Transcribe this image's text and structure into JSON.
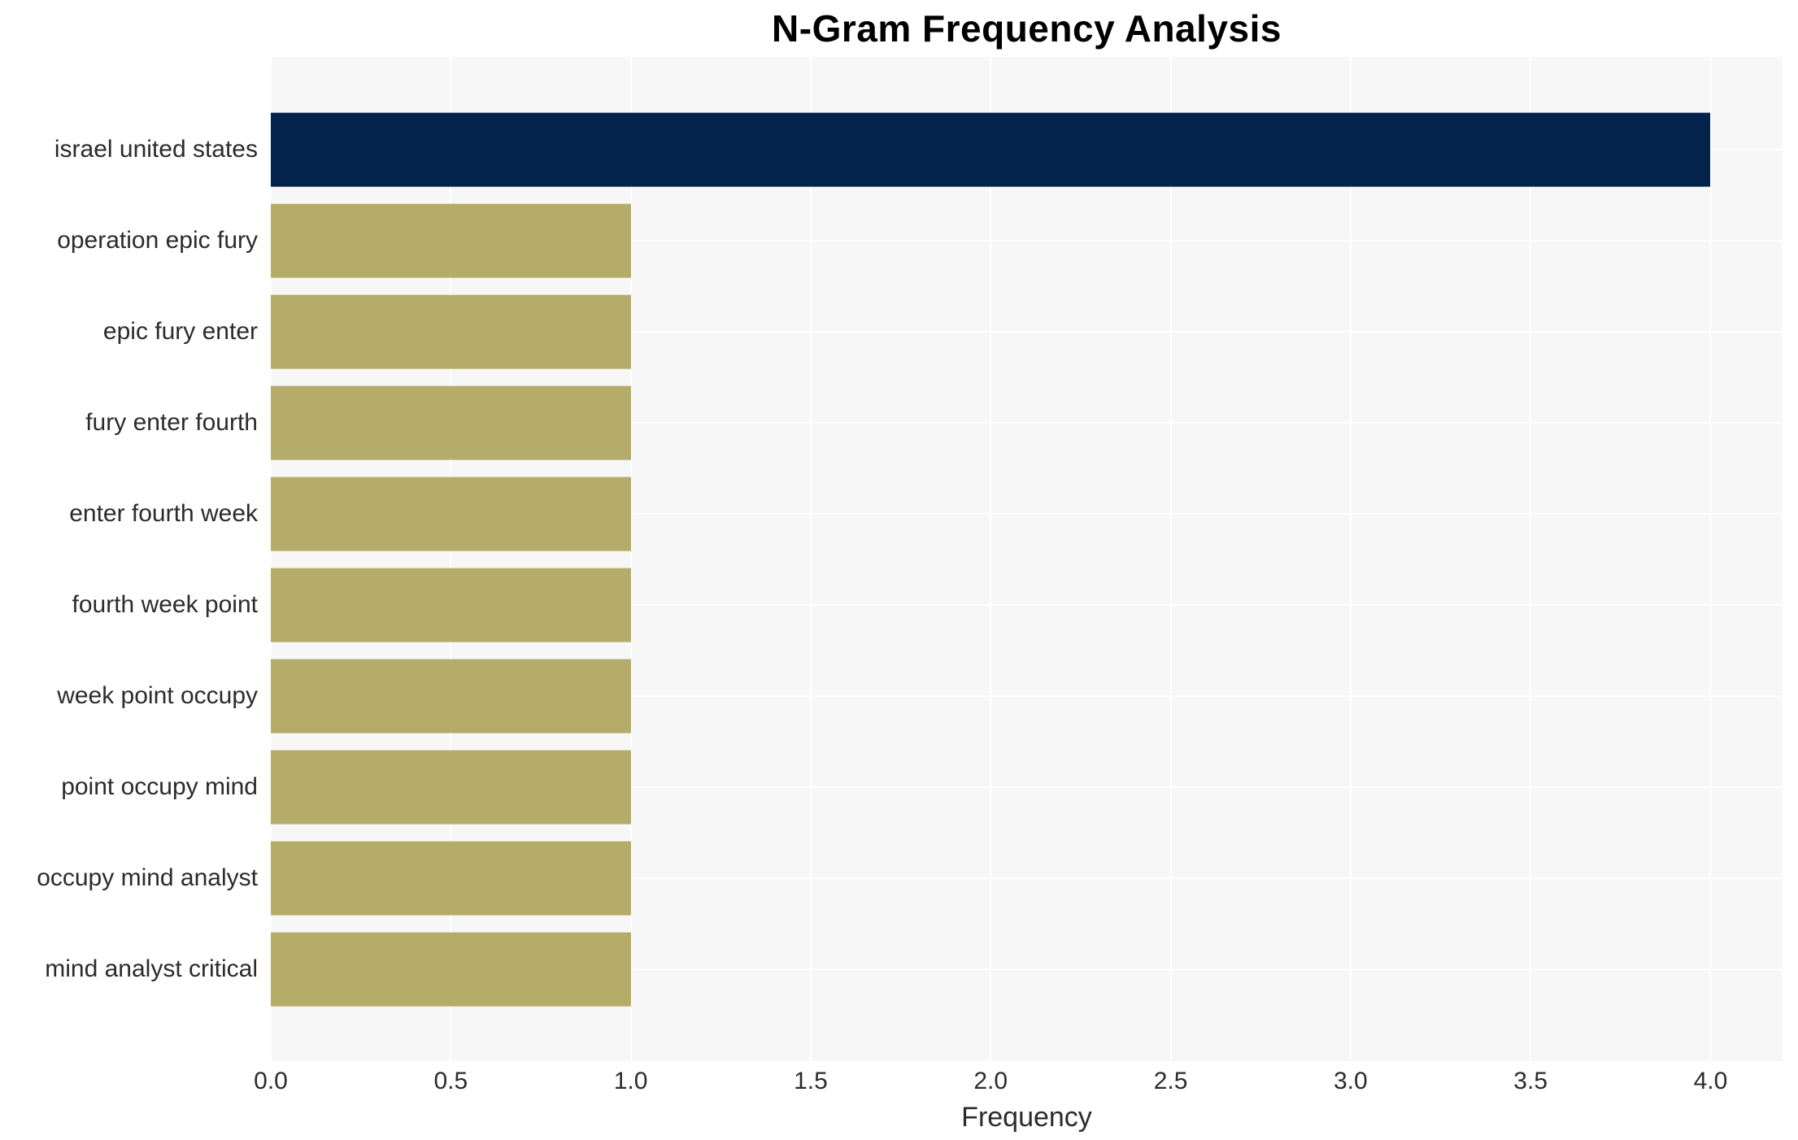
{
  "chart_data": {
    "type": "bar",
    "orientation": "horizontal",
    "title": "N-Gram Frequency Analysis",
    "xlabel": "Frequency",
    "ylabel": "",
    "categories": [
      "israel united states",
      "operation epic fury",
      "epic fury enter",
      "fury enter fourth",
      "enter fourth week",
      "fourth week point",
      "week point occupy",
      "point occupy mind",
      "occupy mind analyst",
      "mind analyst critical"
    ],
    "values": [
      4,
      1,
      1,
      1,
      1,
      1,
      1,
      1,
      1,
      1
    ],
    "bar_colors": [
      "#03234d",
      "#b6ac69",
      "#b6ac69",
      "#b6ac69",
      "#b6ac69",
      "#b6ac69",
      "#b6ac69",
      "#b6ac69",
      "#b6ac69",
      "#b6ac69"
    ],
    "xlim": [
      0,
      4.2
    ],
    "xticks": [
      0.0,
      0.5,
      1.0,
      1.5,
      2.0,
      2.5,
      3.0,
      3.5,
      4.0
    ],
    "xtick_labels": [
      "0.0",
      "0.5",
      "1.0",
      "1.5",
      "2.0",
      "2.5",
      "3.0",
      "3.5",
      "4.0"
    ],
    "grid": true,
    "legend": "none",
    "colors": {
      "plot_background": "#f7f7f7",
      "gridline": "#ffffff",
      "highlight_bar": "#03234d",
      "default_bar": "#b6ac69",
      "text": "#2b2b2b",
      "title_text": "#000000",
      "figure_background": "#ffffff"
    }
  }
}
